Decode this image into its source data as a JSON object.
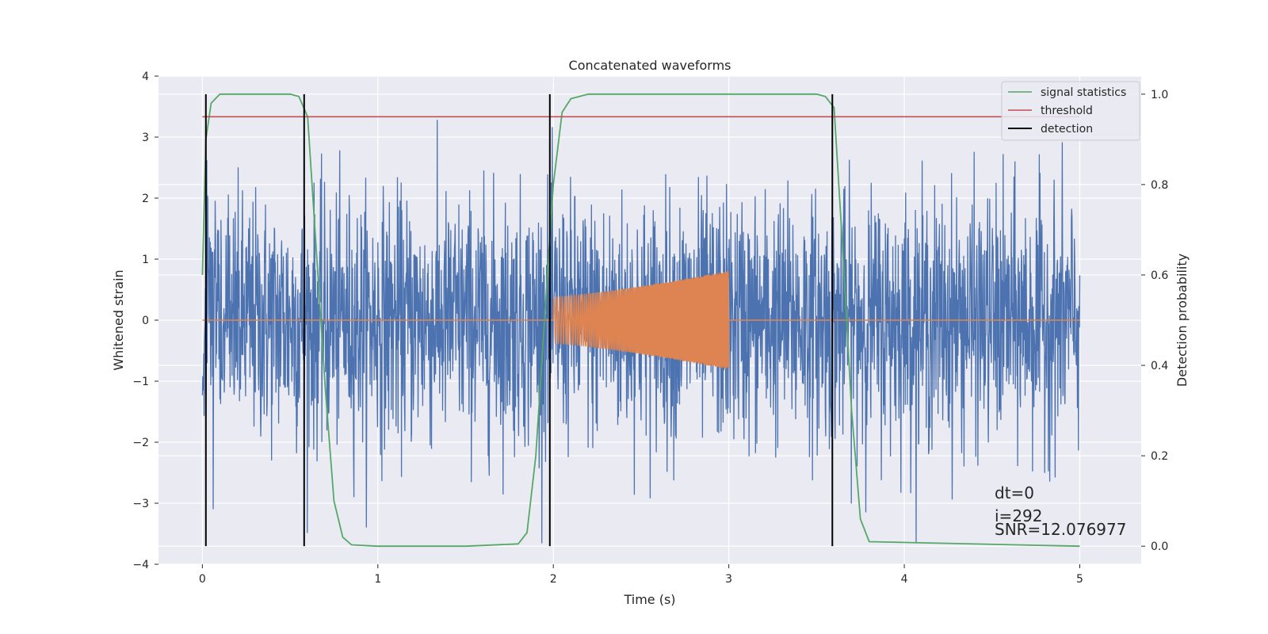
{
  "chart_data": {
    "type": "line",
    "title": "Concatenated waveforms",
    "xlabel": "Time (s)",
    "ylabel": "Whitened strain",
    "y2label": "Detection probability",
    "xlim": [
      -0.25,
      5.35
    ],
    "ylim": [
      -4,
      4
    ],
    "y2lim": [
      -0.04,
      1.04
    ],
    "x_ticks": [
      0,
      1,
      2,
      3,
      4,
      5
    ],
    "y_ticks": [
      -4,
      -3,
      -2,
      -1,
      0,
      1,
      2,
      3,
      4
    ],
    "y2_ticks": [
      0.0,
      0.2,
      0.4,
      0.6,
      0.8,
      1.0
    ],
    "y2_tick_labels": [
      "0.0",
      "0.2",
      "0.4",
      "0.6",
      "0.8",
      "1.0"
    ],
    "grid": true,
    "legend_position": "top-right",
    "series": [
      {
        "name": "whitened strain",
        "axis": "left",
        "color": "#4c72b0",
        "kind": "noise",
        "x_range": [
          0,
          5
        ],
        "std": 1.0,
        "approx_range": [
          -3.65,
          3.65
        ]
      },
      {
        "name": "injected waveform",
        "axis": "left",
        "color": "#dd8452",
        "kind": "chirp",
        "x_range": [
          0,
          5
        ],
        "active_range": [
          2.0,
          3.0
        ],
        "amplitude_start": 0.38,
        "amplitude_end": 0.8
      },
      {
        "name": "signal statistics",
        "axis": "right",
        "color": "#55a868",
        "x": [
          0.0,
          0.02,
          0.05,
          0.1,
          0.5,
          0.55,
          0.6,
          0.65,
          0.7,
          0.75,
          0.8,
          0.85,
          1.0,
          1.5,
          1.8,
          1.85,
          1.9,
          1.95,
          2.0,
          2.05,
          2.1,
          2.2,
          3.0,
          3.5,
          3.55,
          3.6,
          3.65,
          3.7,
          3.75,
          3.8,
          5.0
        ],
        "y": [
          0.6,
          0.9,
          0.98,
          1.0,
          1.0,
          0.995,
          0.95,
          0.65,
          0.35,
          0.1,
          0.02,
          0.003,
          0.0,
          0.0,
          0.005,
          0.03,
          0.2,
          0.5,
          0.8,
          0.96,
          0.99,
          1.0,
          1.0,
          1.0,
          0.995,
          0.97,
          0.65,
          0.3,
          0.06,
          0.01,
          0.0
        ]
      },
      {
        "name": "threshold",
        "axis": "right",
        "color": "#c44e52",
        "x": [
          0,
          5
        ],
        "y": [
          0.95,
          0.95
        ]
      },
      {
        "name": "detection",
        "axis": "right",
        "color": "#000000",
        "kind": "vlines",
        "x": [
          0.02,
          0.58,
          1.98,
          3.59
        ],
        "y_range": [
          0.0,
          1.0
        ]
      }
    ],
    "legend": [
      {
        "label": "signal statistics",
        "color": "#55a868"
      },
      {
        "label": "threshold",
        "color": "#c44e52"
      },
      {
        "label": "detection",
        "color": "#000000"
      }
    ],
    "annotations": {
      "dt": "dt=0",
      "i": "i=292",
      "snr": "SNR=12.076977"
    }
  }
}
